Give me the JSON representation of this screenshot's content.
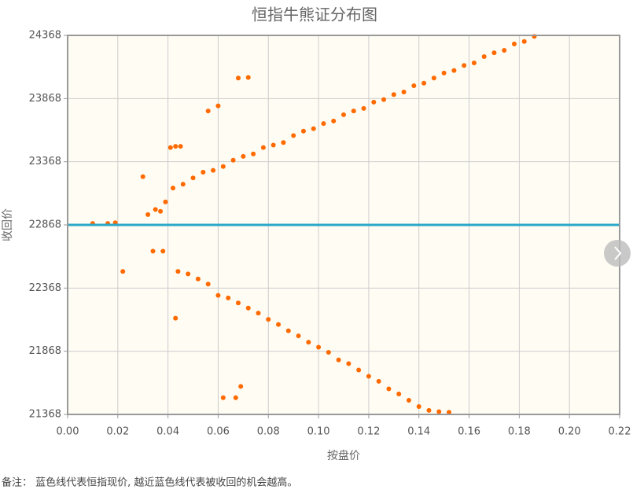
{
  "chart_data": {
    "type": "scatter",
    "title": "恒指牛熊证分布图",
    "x_label": "按盘价",
    "y_label": "收回价",
    "footnote": "备注： 蓝色线代表恒指现价, 越近蓝色线代表被收回的机会越高。",
    "xlim": [
      0,
      0.22
    ],
    "xticks": [
      {
        "value": 0,
        "label": "0.00"
      },
      {
        "value": 0.02,
        "label": "0.02"
      },
      {
        "value": 0.04,
        "label": "0.04"
      },
      {
        "value": 0.06,
        "label": "0.06"
      },
      {
        "value": 0.08,
        "label": "0.08"
      },
      {
        "value": 0.1,
        "label": "0.10"
      },
      {
        "value": 0.12,
        "label": "0.12"
      },
      {
        "value": 0.14,
        "label": "0.14"
      },
      {
        "value": 0.16,
        "label": "0.16"
      },
      {
        "value": 0.18,
        "label": "0.18"
      },
      {
        "value": 0.2,
        "label": "0.20"
      },
      {
        "value": 0.22,
        "label": "0.22"
      }
    ],
    "ylim": [
      21368,
      24368
    ],
    "yticks": [
      21368,
      21868,
      22368,
      22868,
      23368,
      23868,
      24368
    ],
    "grid": true,
    "reference_line": {
      "value": 22868,
      "color": "#2aa8c8"
    },
    "series": [
      {
        "color": "#ff6a00",
        "x": [
          0.01,
          0.016,
          0.019,
          0.03,
          0.032,
          0.035,
          0.037,
          0.039,
          0.041,
          0.043,
          0.045,
          0.056,
          0.06,
          0.068,
          0.072,
          0.022,
          0.034,
          0.038,
          0.043,
          0.062,
          0.067,
          0.069,
          0.042,
          0.046,
          0.05,
          0.054,
          0.058,
          0.062,
          0.066,
          0.07,
          0.074,
          0.078,
          0.082,
          0.086,
          0.09,
          0.094,
          0.098,
          0.102,
          0.106,
          0.11,
          0.114,
          0.118,
          0.122,
          0.126,
          0.13,
          0.134,
          0.138,
          0.142,
          0.146,
          0.15,
          0.154,
          0.158,
          0.162,
          0.166,
          0.17,
          0.174,
          0.178,
          0.182,
          0.186,
          0.044,
          0.048,
          0.052,
          0.056,
          0.06,
          0.064,
          0.068,
          0.072,
          0.076,
          0.08,
          0.084,
          0.088,
          0.092,
          0.096,
          0.1,
          0.104,
          0.108,
          0.112,
          0.116,
          0.12,
          0.124,
          0.128,
          0.132,
          0.136,
          0.14,
          0.144,
          0.148,
          0.152
        ],
        "values": [
          22880,
          22880,
          22885,
          23250,
          22950,
          22990,
          22975,
          23050,
          23480,
          23490,
          23490,
          23770,
          23810,
          24030,
          24035,
          22500,
          22660,
          22660,
          22130,
          21500,
          21500,
          21590,
          23160,
          23190,
          23240,
          23285,
          23300,
          23330,
          23380,
          23410,
          23430,
          23480,
          23500,
          23520,
          23575,
          23610,
          23630,
          23670,
          23690,
          23740,
          23770,
          23790,
          23840,
          23860,
          23900,
          23920,
          23970,
          23990,
          24030,
          24070,
          24090,
          24130,
          24150,
          24200,
          24230,
          24250,
          24300,
          24320,
          24360,
          22500,
          22480,
          22440,
          22400,
          22310,
          22290,
          22250,
          22210,
          22170,
          22120,
          22080,
          22030,
          21990,
          21940,
          21900,
          21860,
          21800,
          21770,
          21720,
          21670,
          21630,
          21570,
          21530,
          21480,
          21430,
          21400,
          21390,
          21385
        ]
      }
    ]
  }
}
